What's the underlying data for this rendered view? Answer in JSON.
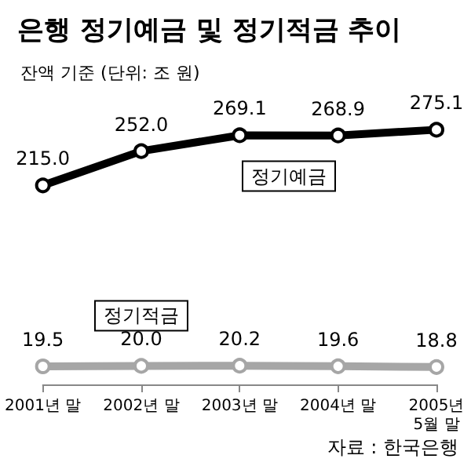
{
  "chart_data": {
    "type": "line",
    "title": "은행 정기예금 및 정기적금 추이",
    "subtitle": "잔액 기준 (단위: 조 원)",
    "categories": [
      "2001년 말",
      "2002년 말",
      "2003년 말",
      "2004년 말",
      "2005년\n5월 말"
    ],
    "series": [
      {
        "name": "정기예금",
        "color": "#000000",
        "values": [
          215.0,
          252.0,
          269.1,
          268.9,
          275.1
        ],
        "value_labels": [
          "215.0",
          "252.0",
          "269.1",
          "268.9",
          "275.1"
        ]
      },
      {
        "name": "정기적금",
        "color": "#a6a6a6",
        "values": [
          19.5,
          20.0,
          20.2,
          19.6,
          18.8
        ],
        "value_labels": [
          "19.5",
          "20.0",
          "20.2",
          "19.6",
          "18.8"
        ]
      }
    ],
    "marker": "circle",
    "legend": false,
    "annotations": [
      "자료 : 한국은행"
    ]
  }
}
